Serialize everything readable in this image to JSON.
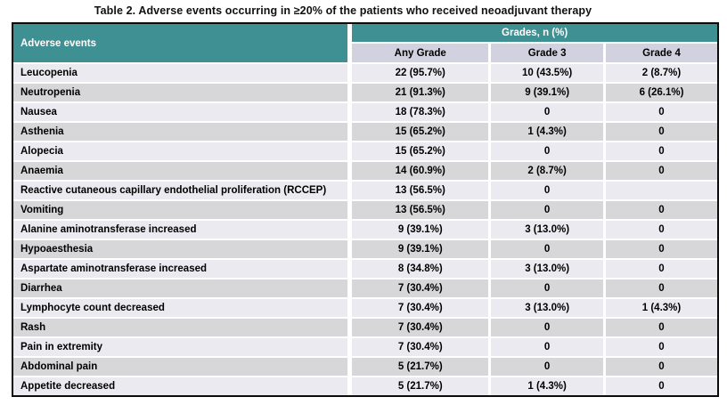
{
  "caption": "Table 2. Adverse events occurring in ≥20% of the patients who received neoadjuvant therapy",
  "table": {
    "col1_header": "Adverse events",
    "grades_header": "Grades, n (%)",
    "subheaders": [
      "Any Grade",
      "Grade 3",
      "Grade 4"
    ],
    "rows": [
      {
        "event": "Leucopenia",
        "any": "22 (95.7%)",
        "g3": "10 (43.5%)",
        "g4": "2 (8.7%)"
      },
      {
        "event": "Neutropenia",
        "any": "21 (91.3%)",
        "g3": "9 (39.1%)",
        "g4": "6 (26.1%)"
      },
      {
        "event": "Nausea",
        "any": "18 (78.3%)",
        "g3": "0",
        "g4": "0"
      },
      {
        "event": "Asthenia",
        "any": "15 (65.2%)",
        "g3": "1 (4.3%)",
        "g4": "0"
      },
      {
        "event": "Alopecia",
        "any": "15 (65.2%)",
        "g3": "0",
        "g4": "0"
      },
      {
        "event": "Anaemia",
        "any": "14 (60.9%)",
        "g3": "2 (8.7%)",
        "g4": "0"
      },
      {
        "event": "Reactive cutaneous capillary endothelial proliferation (RCCEP)",
        "any": "13 (56.5%)",
        "g3": "0",
        "g4": ""
      },
      {
        "event": "Vomiting",
        "any": "13 (56.5%)",
        "g3": "0",
        "g4": "0"
      },
      {
        "event": "Alanine aminotransferase increased",
        "any": "9 (39.1%)",
        "g3": "3 (13.0%)",
        "g4": "0"
      },
      {
        "event": "Hypoaesthesia",
        "any": "9 (39.1%)",
        "g3": "0",
        "g4": "0"
      },
      {
        "event": "Aspartate aminotransferase increased",
        "any": "8 (34.8%)",
        "g3": "3 (13.0%)",
        "g4": "0"
      },
      {
        "event": "Diarrhea",
        "any": "7 (30.4%)",
        "g3": "0",
        "g4": "0"
      },
      {
        "event": "Lymphocyte count decreased",
        "any": "7 (30.4%)",
        "g3": "3 (13.0%)",
        "g4": "1 (4.3%)"
      },
      {
        "event": "Rash",
        "any": "7 (30.4%)",
        "g3": "0",
        "g4": "0"
      },
      {
        "event": "Pain in extremity",
        "any": "7 (30.4%)",
        "g3": "0",
        "g4": "0"
      },
      {
        "event": "Abdominal pain",
        "any": "5 (21.7%)",
        "g3": "0",
        "g4": "0"
      },
      {
        "event": "Appetite decreased",
        "any": "5 (21.7%)",
        "g3": "1 (4.3%)",
        "g4": "0"
      }
    ]
  },
  "colors": {
    "header_teal": "#3F9092",
    "subheader_bg": "#D2D1DF",
    "row_light": "#EAEAF0",
    "row_dark": "#D7D6D9",
    "outer_border": "#0B0B0B",
    "separator": "#FFFFFF",
    "header_text": "#FFFFFF",
    "body_text": "#000000"
  },
  "chart_data": {
    "type": "table",
    "title": "Table 2. Adverse events occurring in ≥20% of the patients who received neoadjuvant therapy",
    "columns": [
      "Adverse events",
      "Any Grade",
      "Grade 3",
      "Grade 4"
    ],
    "rows": [
      [
        "Leucopenia",
        "22 (95.7%)",
        "10 (43.5%)",
        "2 (8.7%)"
      ],
      [
        "Neutropenia",
        "21 (91.3%)",
        "9 (39.1%)",
        "6 (26.1%)"
      ],
      [
        "Nausea",
        "18 (78.3%)",
        "0",
        "0"
      ],
      [
        "Asthenia",
        "15 (65.2%)",
        "1 (4.3%)",
        "0"
      ],
      [
        "Alopecia",
        "15 (65.2%)",
        "0",
        "0"
      ],
      [
        "Anaemia",
        "14 (60.9%)",
        "2 (8.7%)",
        "0"
      ],
      [
        "Reactive cutaneous capillary endothelial proliferation (RCCEP)",
        "13 (56.5%)",
        "0",
        ""
      ],
      [
        "Vomiting",
        "13 (56.5%)",
        "0",
        "0"
      ],
      [
        "Alanine aminotransferase increased",
        "9 (39.1%)",
        "3 (13.0%)",
        "0"
      ],
      [
        "Hypoaesthesia",
        "9 (39.1%)",
        "0",
        "0"
      ],
      [
        "Aspartate aminotransferase increased",
        "8 (34.8%)",
        "3 (13.0%)",
        "0"
      ],
      [
        "Diarrhea",
        "7 (30.4%)",
        "0",
        "0"
      ],
      [
        "Lymphocyte count decreased",
        "7 (30.4%)",
        "3 (13.0%)",
        "1 (4.3%)"
      ],
      [
        "Rash",
        "7 (30.4%)",
        "0",
        "0"
      ],
      [
        "Pain in extremity",
        "7 (30.4%)",
        "0",
        "0"
      ],
      [
        "Abdominal pain",
        "5 (21.7%)",
        "0",
        "0"
      ],
      [
        "Appetite decreased",
        "5 (21.7%)",
        "1 (4.3%)",
        "0"
      ]
    ]
  }
}
